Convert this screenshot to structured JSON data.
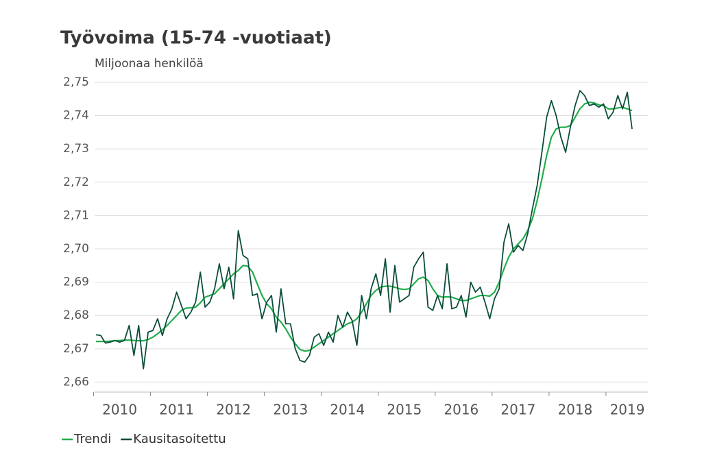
{
  "chart_data": {
    "type": "line",
    "title": "Työvoima (15-74 -vuotiaat)",
    "subtitle": "Miljoonaa henkilöä",
    "categories": [
      null,
      null,
      null,
      null,
      null,
      "2010",
      null,
      null,
      null,
      null,
      null,
      null,
      null,
      null,
      null,
      null,
      null,
      "2011",
      null,
      null,
      null,
      null,
      null,
      null,
      null,
      null,
      null,
      null,
      null,
      "2012",
      null,
      null,
      null,
      null,
      null,
      null,
      null,
      null,
      null,
      null,
      null,
      "2013",
      null,
      null,
      null,
      null,
      null,
      null,
      null,
      null,
      null,
      null,
      null,
      "2014",
      null,
      null,
      null,
      null,
      null,
      null,
      null,
      null,
      null,
      null,
      null,
      "2015",
      null,
      null,
      null,
      null,
      null,
      null,
      null,
      null,
      null,
      null,
      null,
      "2016",
      null,
      null,
      null,
      null,
      null,
      null,
      null,
      null,
      null,
      null,
      null,
      "2017",
      null,
      null,
      null,
      null,
      null,
      null,
      null,
      null,
      null,
      null,
      null,
      "2018",
      null,
      null,
      null,
      null,
      null,
      null,
      null,
      null,
      null,
      null,
      "2019",
      null
    ],
    "series": [
      {
        "name": "Trendi",
        "color": "#22ad4c",
        "values": [
          2.6722,
          2.6722,
          2.6722,
          2.6723,
          2.6724,
          2.6725,
          2.6726,
          2.6726,
          2.6725,
          2.6724,
          2.6724,
          2.6728,
          2.6735,
          2.6745,
          2.6757,
          2.677,
          2.6785,
          2.68,
          2.6815,
          2.6822,
          2.6823,
          2.6825,
          2.6838,
          2.6855,
          2.686,
          2.6865,
          2.688,
          2.6895,
          2.691,
          2.6925,
          2.6935,
          2.695,
          2.6948,
          2.693,
          2.6895,
          2.686,
          2.6835,
          2.682,
          2.6795,
          2.678,
          2.676,
          2.6735,
          2.6715,
          2.6698,
          2.6693,
          2.6695,
          2.6705,
          2.6715,
          2.6725,
          2.6735,
          2.6745,
          2.6755,
          2.6765,
          2.6775,
          2.678,
          2.679,
          2.681,
          2.6835,
          2.686,
          2.6875,
          2.6885,
          2.6888,
          2.6888,
          2.6885,
          2.688,
          2.6878,
          2.688,
          2.6895,
          2.691,
          2.6915,
          2.6905,
          2.688,
          2.686,
          2.6855,
          2.6856,
          2.6855,
          2.685,
          2.6845,
          2.6845,
          2.685,
          2.6855,
          2.686,
          2.686,
          2.6858,
          2.687,
          2.69,
          2.694,
          2.6975,
          2.7,
          2.7015,
          2.703,
          2.7055,
          2.709,
          2.7145,
          2.721,
          2.728,
          2.7335,
          2.736,
          2.7365,
          2.7365,
          2.737,
          2.7395,
          2.742,
          2.7435,
          2.744,
          2.7438,
          2.7432,
          2.743,
          2.742,
          2.742,
          2.7423,
          2.7425,
          2.742,
          2.7415
        ]
      },
      {
        "name": "Kausitasoitettu",
        "color": "#0b4d3c",
        "values": [
          2.6742,
          2.674,
          2.6717,
          2.672,
          2.6725,
          2.672,
          2.6725,
          2.677,
          2.668,
          2.677,
          2.664,
          2.675,
          2.6755,
          2.679,
          2.674,
          2.679,
          2.682,
          2.687,
          2.683,
          2.679,
          2.681,
          2.684,
          2.693,
          2.6825,
          2.684,
          2.688,
          2.6955,
          2.688,
          2.6945,
          2.685,
          2.7055,
          2.698,
          2.697,
          2.686,
          2.6865,
          2.679,
          2.684,
          2.686,
          2.675,
          2.688,
          2.6775,
          2.6775,
          2.67,
          2.6665,
          2.666,
          2.668,
          2.6735,
          2.6745,
          2.671,
          2.675,
          2.672,
          2.68,
          2.6765,
          2.681,
          2.6785,
          2.671,
          2.686,
          2.679,
          2.688,
          2.6925,
          2.686,
          2.697,
          2.681,
          2.695,
          2.684,
          2.685,
          2.686,
          2.6945,
          2.697,
          2.699,
          2.6825,
          2.6815,
          2.686,
          2.682,
          2.6955,
          2.682,
          2.6825,
          2.686,
          2.6795,
          2.69,
          2.687,
          2.6885,
          2.684,
          2.679,
          2.685,
          2.688,
          2.702,
          2.7075,
          2.699,
          2.701,
          2.6995,
          2.7045,
          2.712,
          2.719,
          2.729,
          2.7395,
          2.7445,
          2.74,
          2.7335,
          2.729,
          2.7365,
          2.743,
          2.7475,
          2.746,
          2.743,
          2.7435,
          2.7425,
          2.7435,
          2.739,
          2.741,
          2.746,
          2.742,
          2.747,
          2.736
        ]
      }
    ],
    "ylim": [
      2.657,
      2.75
    ],
    "yticks": [
      {
        "value": 2.66,
        "label": "2,66"
      },
      {
        "value": 2.67,
        "label": "2,67"
      },
      {
        "value": 2.68,
        "label": "2,68"
      },
      {
        "value": 2.69,
        "label": "2,69"
      },
      {
        "value": 2.7,
        "label": "2,70"
      },
      {
        "value": 2.71,
        "label": "2,71"
      },
      {
        "value": 2.72,
        "label": "2,72"
      },
      {
        "value": 2.73,
        "label": "2,73"
      },
      {
        "value": 2.74,
        "label": "2,74"
      },
      {
        "value": 2.75,
        "label": "2,75"
      }
    ],
    "grid": true,
    "legend": "bottom"
  }
}
